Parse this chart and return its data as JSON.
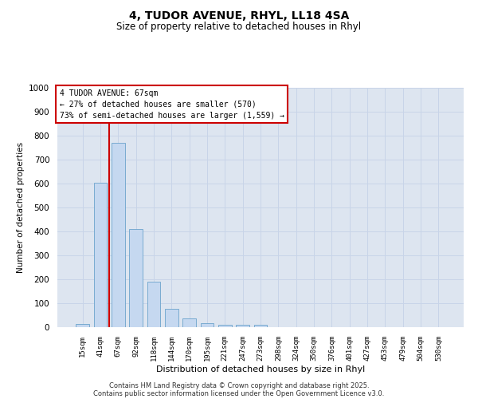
{
  "title_line1": "4, TUDOR AVENUE, RHYL, LL18 4SA",
  "title_line2": "Size of property relative to detached houses in Rhyl",
  "xlabel": "Distribution of detached houses by size in Rhyl",
  "ylabel": "Number of detached properties",
  "bar_labels": [
    "15sqm",
    "41sqm",
    "67sqm",
    "92sqm",
    "118sqm",
    "144sqm",
    "170sqm",
    "195sqm",
    "221sqm",
    "247sqm",
    "273sqm",
    "298sqm",
    "324sqm",
    "350sqm",
    "376sqm",
    "401sqm",
    "427sqm",
    "453sqm",
    "479sqm",
    "504sqm",
    "530sqm"
  ],
  "bar_values": [
    15,
    605,
    770,
    410,
    190,
    78,
    38,
    18,
    10,
    10,
    10,
    0,
    0,
    0,
    0,
    0,
    0,
    0,
    0,
    0,
    0
  ],
  "bar_color": "#c5d8f0",
  "bar_edge_color": "#6ba3cc",
  "red_line_x": 1.5,
  "annotation_title": "4 TUDOR AVENUE: 67sqm",
  "annotation_line2": "← 27% of detached houses are smaller (570)",
  "annotation_line3": "73% of semi-detached houses are larger (1,559) →",
  "annotation_box_color": "#ffffff",
  "annotation_box_edge": "#cc0000",
  "red_line_color": "#cc0000",
  "ylim": [
    0,
    1000
  ],
  "yticks": [
    0,
    100,
    200,
    300,
    400,
    500,
    600,
    700,
    800,
    900,
    1000
  ],
  "grid_color": "#c8d4e8",
  "bg_color": "#dde5f0",
  "footer_line1": "Contains HM Land Registry data © Crown copyright and database right 2025.",
  "footer_line2": "Contains public sector information licensed under the Open Government Licence v3.0."
}
